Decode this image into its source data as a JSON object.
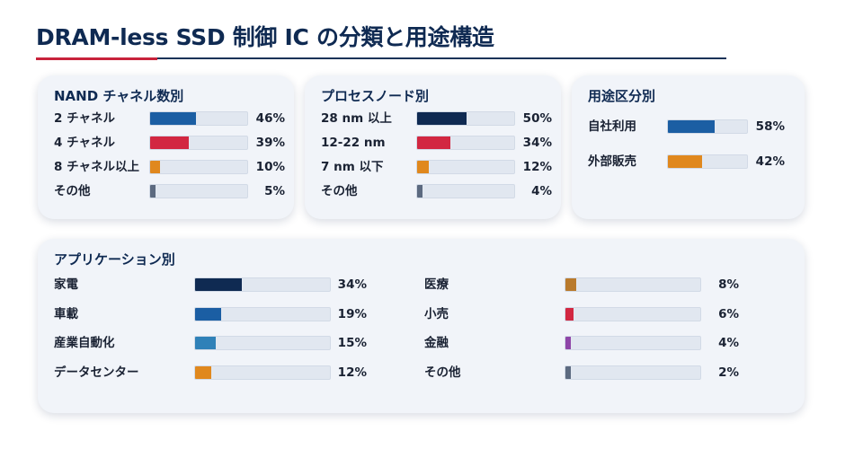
{
  "page": {
    "title": "DRAM-less SSD 制御 IC の分類と用途構造"
  },
  "colors": {
    "navy": "#0f2a52",
    "blue": "#1b5ea3",
    "steel": "#2f81b8",
    "red": "#d22741",
    "orange": "#e0881e",
    "gray": "#5c6a80",
    "bronze": "#b97a2c",
    "purple": "#8e45a8"
  },
  "chart_data": [
    {
      "type": "bar",
      "title": "NAND チャネル数別",
      "categories": [
        "2 チャネル",
        "4 チャネル",
        "8 チャネル以上",
        "その他"
      ],
      "values": [
        46,
        39,
        10,
        5
      ],
      "labels": [
        "46%",
        "39%",
        "10%",
        "5%"
      ],
      "colors": [
        "#1b5ea3",
        "#d22741",
        "#e0881e",
        "#5c6a80"
      ],
      "ylim": [
        0,
        100
      ]
    },
    {
      "type": "bar",
      "title": "プロセスノード別",
      "categories": [
        "28 nm 以上",
        "12-22 nm",
        "7 nm 以下",
        "その他"
      ],
      "values": [
        50,
        34,
        12,
        4
      ],
      "labels": [
        "50%",
        "34%",
        "12%",
        "4%"
      ],
      "colors": [
        "#0f2a52",
        "#d22741",
        "#e0881e",
        "#5c6a80"
      ],
      "ylim": [
        0,
        100
      ]
    },
    {
      "type": "bar",
      "title": "用途区分別",
      "categories": [
        "自社利用",
        "外部販売"
      ],
      "values": [
        58,
        42
      ],
      "labels": [
        "58%",
        "42%"
      ],
      "colors": [
        "#1b5ea3",
        "#e0881e"
      ],
      "ylim": [
        0,
        100
      ]
    },
    {
      "type": "bar",
      "title": "アプリケーション別",
      "categories": [
        "家電",
        "車載",
        "産業自動化",
        "データセンター",
        "医療",
        "小売",
        "金融",
        "その他"
      ],
      "values": [
        34,
        19,
        15,
        12,
        8,
        6,
        4,
        2
      ],
      "labels": [
        "34%",
        "19%",
        "15%",
        "12%",
        "8%",
        "6%",
        "4%",
        "2%"
      ],
      "colors": [
        "#0f2a52",
        "#1b5ea3",
        "#2f81b8",
        "#e0881e",
        "#b97a2c",
        "#d22741",
        "#8e45a8",
        "#5c6a80"
      ],
      "ylim": [
        0,
        100
      ]
    }
  ]
}
